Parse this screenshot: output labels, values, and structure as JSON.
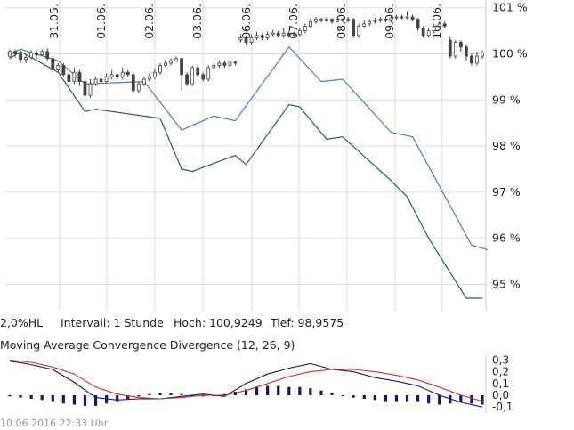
{
  "info": {
    "bands_label": "2,0%HL",
    "interval_label": "Intervall: 1 Stunde",
    "high_label": "Hoch: 100,9249",
    "low_label": "Tief: 98,9575"
  },
  "macd_title": "Moving Average Convergence Divergence (12, 26, 9)",
  "footer_timestamp": "10.06.2016 22:33 Uhr",
  "colors": {
    "candle": "#444444",
    "upper_band": "#4a7ac8",
    "lower_band": "#1f6b3a",
    "macd_line": "#1c1666",
    "signal_line": "#d22b2b",
    "histogram": "#1c1666",
    "grid": "#dddddd"
  },
  "chart_data": [
    {
      "type": "candlestick",
      "x_tick_labels": [
        "31.05.",
        "01.06.",
        "02.06.",
        "03.06.",
        "06.06.",
        "07.06.",
        "08.06.",
        "09.06.",
        "10.06."
      ],
      "y_tick_labels": [
        "101 %",
        "100 %",
        "99 %",
        "98 %",
        "97 %",
        "96 %",
        "95 %"
      ],
      "ylim": [
        94.4,
        101.1
      ],
      "grid": true,
      "candles": [
        [
          99.95,
          100.05,
          100.1,
          99.9
        ],
        [
          100.05,
          100.0,
          100.1,
          99.92
        ],
        [
          100.0,
          99.88,
          100.05,
          99.8
        ],
        [
          99.88,
          99.92,
          99.98,
          99.8
        ],
        [
          99.92,
          100.02,
          100.08,
          99.88
        ],
        [
          100.02,
          99.98,
          100.06,
          99.9
        ],
        [
          99.98,
          100.05,
          100.1,
          99.95
        ],
        [
          100.05,
          99.9,
          100.12,
          99.85
        ],
        [
          99.9,
          99.65,
          99.95,
          99.6
        ],
        [
          99.65,
          99.75,
          99.8,
          99.6
        ],
        [
          99.75,
          99.55,
          99.8,
          99.5
        ],
        [
          99.55,
          99.4,
          99.6,
          99.3
        ],
        [
          99.4,
          99.6,
          99.7,
          99.35
        ],
        [
          99.6,
          99.4,
          99.65,
          99.3
        ],
        [
          99.4,
          99.1,
          99.45,
          99.0
        ],
        [
          99.1,
          99.35,
          99.45,
          99.05
        ],
        [
          99.35,
          99.45,
          99.5,
          99.3
        ],
        [
          99.45,
          99.4,
          99.55,
          99.35
        ],
        [
          99.4,
          99.5,
          99.58,
          99.38
        ],
        [
          99.5,
          99.55,
          99.65,
          99.45
        ],
        [
          99.55,
          99.5,
          99.62,
          99.45
        ],
        [
          99.5,
          99.6,
          99.7,
          99.45
        ],
        [
          99.6,
          99.55,
          99.65,
          99.5
        ],
        [
          99.55,
          99.2,
          99.6,
          99.15
        ],
        [
          99.2,
          99.35,
          99.4,
          99.15
        ],
        [
          99.35,
          99.45,
          99.5,
          99.3
        ],
        [
          99.45,
          99.5,
          99.58,
          99.4
        ],
        [
          99.5,
          99.6,
          99.68,
          99.45
        ],
        [
          99.6,
          99.75,
          99.8,
          99.55
        ],
        [
          99.75,
          99.8,
          99.88,
          99.7
        ],
        [
          99.8,
          99.85,
          99.9,
          99.75
        ],
        [
          99.85,
          99.9,
          99.95,
          99.82
        ],
        [
          99.9,
          99.55,
          99.92,
          99.2
        ],
        [
          99.55,
          99.35,
          99.6,
          99.3
        ],
        [
          99.35,
          99.7,
          99.75,
          99.3
        ],
        [
          99.7,
          99.55,
          99.78,
          99.5
        ],
        [
          99.55,
          99.45,
          99.6,
          99.4
        ],
        [
          99.45,
          99.7,
          99.75,
          99.4
        ],
        [
          99.7,
          99.75,
          99.82,
          99.65
        ],
        [
          99.75,
          99.8,
          99.85,
          99.7
        ],
        [
          99.8,
          99.75,
          99.85,
          99.7
        ],
        [
          99.75,
          99.82,
          99.88,
          99.72
        ],
        [
          99.82,
          99.8,
          99.85,
          99.75
        ],
        [
          100.3,
          100.35,
          100.42,
          100.25
        ],
        [
          100.35,
          100.25,
          100.4,
          100.2
        ],
        [
          100.25,
          100.35,
          100.42,
          100.2
        ],
        [
          100.35,
          100.4,
          100.48,
          100.3
        ],
        [
          100.4,
          100.35,
          100.45,
          100.3
        ],
        [
          100.35,
          100.42,
          100.48,
          100.3
        ],
        [
          100.42,
          100.45,
          100.52,
          100.38
        ],
        [
          100.45,
          100.4,
          100.5,
          100.35
        ],
        [
          100.4,
          100.45,
          100.55,
          100.35
        ],
        [
          100.45,
          100.4,
          100.5,
          100.35
        ],
        [
          100.4,
          100.42,
          100.48,
          100.38
        ],
        [
          100.42,
          100.5,
          100.55,
          100.38
        ],
        [
          100.5,
          100.6,
          100.65,
          100.45
        ],
        [
          100.6,
          100.7,
          100.78,
          100.55
        ],
        [
          100.7,
          100.75,
          100.8,
          100.65
        ],
        [
          100.75,
          100.72,
          100.78,
          100.68
        ],
        [
          100.72,
          100.75,
          100.8,
          100.68
        ],
        [
          100.75,
          100.7,
          100.78,
          100.65
        ],
        [
          100.7,
          100.75,
          100.8,
          100.68
        ],
        [
          100.75,
          100.72,
          100.78,
          100.68
        ],
        [
          100.72,
          100.75,
          100.8,
          100.68
        ],
        [
          100.75,
          100.4,
          100.78,
          100.35
        ],
        [
          100.4,
          100.6,
          100.65,
          100.35
        ],
        [
          100.6,
          100.65,
          100.72,
          100.55
        ],
        [
          100.65,
          100.7,
          100.75,
          100.6
        ],
        [
          100.7,
          100.72,
          100.78,
          100.65
        ],
        [
          100.72,
          100.75,
          100.8,
          100.68
        ],
        [
          100.75,
          100.72,
          100.78,
          100.68
        ],
        [
          100.72,
          100.78,
          100.82,
          100.68
        ],
        [
          100.78,
          100.8,
          100.85,
          100.72
        ],
        [
          100.8,
          100.78,
          100.85,
          100.75
        ],
        [
          100.78,
          100.8,
          100.92,
          100.75
        ],
        [
          100.8,
          100.75,
          100.85,
          100.7
        ],
        [
          100.75,
          100.55,
          100.78,
          100.5
        ],
        [
          100.55,
          100.4,
          100.6,
          100.35
        ],
        [
          100.4,
          100.5,
          100.55,
          100.35
        ],
        [
          100.5,
          100.6,
          100.65,
          100.45
        ],
        [
          100.6,
          100.65,
          100.7,
          100.55
        ],
        [
          100.65,
          100.6,
          100.7,
          100.55
        ],
        [
          100.3,
          99.95,
          100.38,
          99.9
        ],
        [
          99.95,
          100.25,
          100.3,
          99.9
        ],
        [
          100.25,
          100.15,
          100.3,
          100.05
        ],
        [
          100.15,
          99.95,
          100.2,
          99.85
        ],
        [
          99.95,
          99.8,
          100.0,
          99.75
        ],
        [
          99.8,
          99.95,
          100.05,
          99.75
        ],
        [
          99.95,
          100.02,
          100.08,
          99.9
        ]
      ],
      "series": [
        {
          "name": "upper",
          "x": [
            0,
            2,
            9,
            14,
            25,
            32,
            38,
            42,
            52,
            58,
            62,
            71,
            75,
            86,
            89
          ],
          "y": [
            100.0,
            100.1,
            99.85,
            99.35,
            99.4,
            98.35,
            98.65,
            98.55,
            100.15,
            99.4,
            99.45,
            98.3,
            98.2,
            95.85,
            95.75
          ]
        },
        {
          "name": "lower",
          "x": [
            0,
            2,
            9,
            14,
            16,
            25,
            28,
            32,
            34,
            42,
            44,
            52,
            54,
            59,
            62,
            71,
            74,
            78,
            85,
            88
          ],
          "y": [
            99.9,
            100.05,
            99.6,
            98.75,
            98.8,
            98.65,
            98.6,
            97.5,
            97.45,
            97.8,
            97.6,
            98.9,
            98.85,
            98.15,
            98.2,
            97.25,
            96.9,
            96.0,
            94.7,
            94.7
          ]
        }
      ]
    },
    {
      "type": "line",
      "title": "Moving Average Convergence Divergence (12, 26, 9)",
      "y_tick_labels": [
        "0,3",
        "0,2",
        "0,1",
        "0,0",
        "-0,1"
      ],
      "ylim": [
        -0.15,
        0.34
      ],
      "series": [
        {
          "name": "MACD",
          "x": [
            0,
            3,
            8,
            12,
            16,
            20,
            24,
            28,
            32,
            36,
            40,
            44,
            48,
            52,
            56,
            60,
            64,
            68,
            72,
            76,
            80,
            84,
            88
          ],
          "y": [
            0.29,
            0.27,
            0.22,
            0.11,
            -0.02,
            -0.04,
            -0.03,
            -0.03,
            -0.01,
            0.01,
            -0.01,
            0.1,
            0.18,
            0.23,
            0.27,
            0.22,
            0.2,
            0.15,
            0.12,
            0.08,
            0.0,
            -0.06,
            -0.1
          ]
        },
        {
          "name": "Signal",
          "x": [
            0,
            4,
            8,
            12,
            16,
            20,
            24,
            28,
            32,
            36,
            40,
            44,
            48,
            52,
            56,
            60,
            64,
            68,
            72,
            76,
            80,
            84,
            88
          ],
          "y": [
            0.3,
            0.28,
            0.24,
            0.18,
            0.07,
            0.01,
            -0.02,
            -0.03,
            -0.02,
            0.0,
            0.0,
            0.04,
            0.1,
            0.16,
            0.2,
            0.22,
            0.22,
            0.2,
            0.17,
            0.13,
            0.07,
            0.0,
            -0.05
          ]
        },
        {
          "name": "Histogram",
          "x": [
            0,
            2,
            4,
            6,
            8,
            10,
            12,
            14,
            16,
            18,
            20,
            22,
            24,
            26,
            28,
            30,
            32,
            34,
            36,
            38,
            40,
            42,
            44,
            46,
            48,
            50,
            52,
            54,
            56,
            58,
            60,
            62,
            64,
            66,
            68,
            70,
            72,
            74,
            76,
            78,
            80,
            82,
            84,
            86,
            88
          ],
          "y": [
            -0.01,
            -0.02,
            -0.03,
            -0.04,
            -0.05,
            -0.07,
            -0.08,
            -0.09,
            -0.09,
            -0.07,
            -0.05,
            -0.03,
            -0.01,
            0.01,
            0.02,
            0.02,
            0.01,
            -0.01,
            -0.01,
            0.0,
            0.01,
            0.03,
            0.05,
            0.07,
            0.08,
            0.08,
            0.07,
            0.07,
            0.06,
            0.04,
            0.02,
            0.0,
            -0.02,
            -0.03,
            -0.04,
            -0.05,
            -0.05,
            -0.05,
            -0.05,
            -0.07,
            -0.08,
            -0.07,
            -0.06,
            -0.07,
            -0.08
          ]
        }
      ]
    }
  ]
}
